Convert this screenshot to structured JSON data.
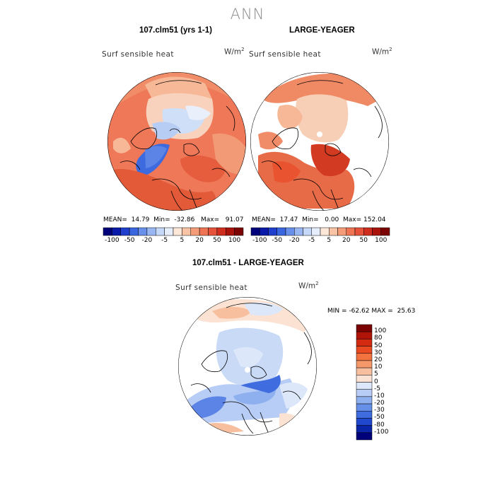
{
  "title": "ANN",
  "panels": [
    {
      "title": "107.clm51 (yrs 1-1)",
      "variable": "Surf sensible heat",
      "unit_base": "W/m",
      "unit_exp": "2",
      "stats": {
        "mean_label": "MEAN=",
        "mean": "14.79",
        "min_label": "Min=",
        "min": "-32.86",
        "max_label": "Max=",
        "max": "91.07"
      }
    },
    {
      "title": "LARGE-YEAGER",
      "variable": "Surf sensible heat",
      "unit_base": "W/m",
      "unit_exp": "2",
      "stats": {
        "mean_label": "MEAN=",
        "mean": "17.47",
        "min_label": "Min=",
        "min": "0.00",
        "max_label": "Max=",
        "max": "152.04"
      }
    },
    {
      "title": "107.clm51 - LARGE-YEAGER",
      "variable": "Surf sensible heat",
      "unit_base": "W/m",
      "unit_exp": "2",
      "stats": {
        "min_label": "MIN =",
        "min": "-62.62",
        "max_label": "MAX =",
        "max": "25.63"
      }
    }
  ],
  "colorbar_top": {
    "ticks": [
      "-100",
      "-50",
      "-20",
      "-5",
      "5",
      "20",
      "50",
      "100"
    ],
    "colors": [
      "#00007a",
      "#0a1aa8",
      "#1f3fcc",
      "#3a66e0",
      "#6890ea",
      "#98b6f2",
      "#c6d8f7",
      "#e6eefb",
      "#fde7d8",
      "#f9c3a5",
      "#f49c77",
      "#ee7453",
      "#e6523a",
      "#cf2e1e",
      "#a8130c",
      "#7b0303"
    ]
  },
  "colorbar_diff": {
    "ticks": [
      "100",
      "80",
      "50",
      "30",
      "20",
      "10",
      "5",
      "0",
      "-5",
      "-10",
      "-20",
      "-30",
      "-50",
      "-80",
      "-100"
    ],
    "colors": [
      "#7b0303",
      "#b01408",
      "#d42a12",
      "#ea4a22",
      "#f27340",
      "#f5986a",
      "#f8bf9e",
      "#fbe2d2",
      "#dce7fa",
      "#b8cdf5",
      "#8fb0ef",
      "#6690e8",
      "#3f6de0",
      "#2048cf",
      "#0b25a8",
      "#00007a"
    ]
  },
  "colors": {
    "ocean_land_warm": "#f0a07a",
    "strong_warm": "#e55b38",
    "cool": "#c9daf6",
    "strong_cool": "#3a66e0"
  }
}
